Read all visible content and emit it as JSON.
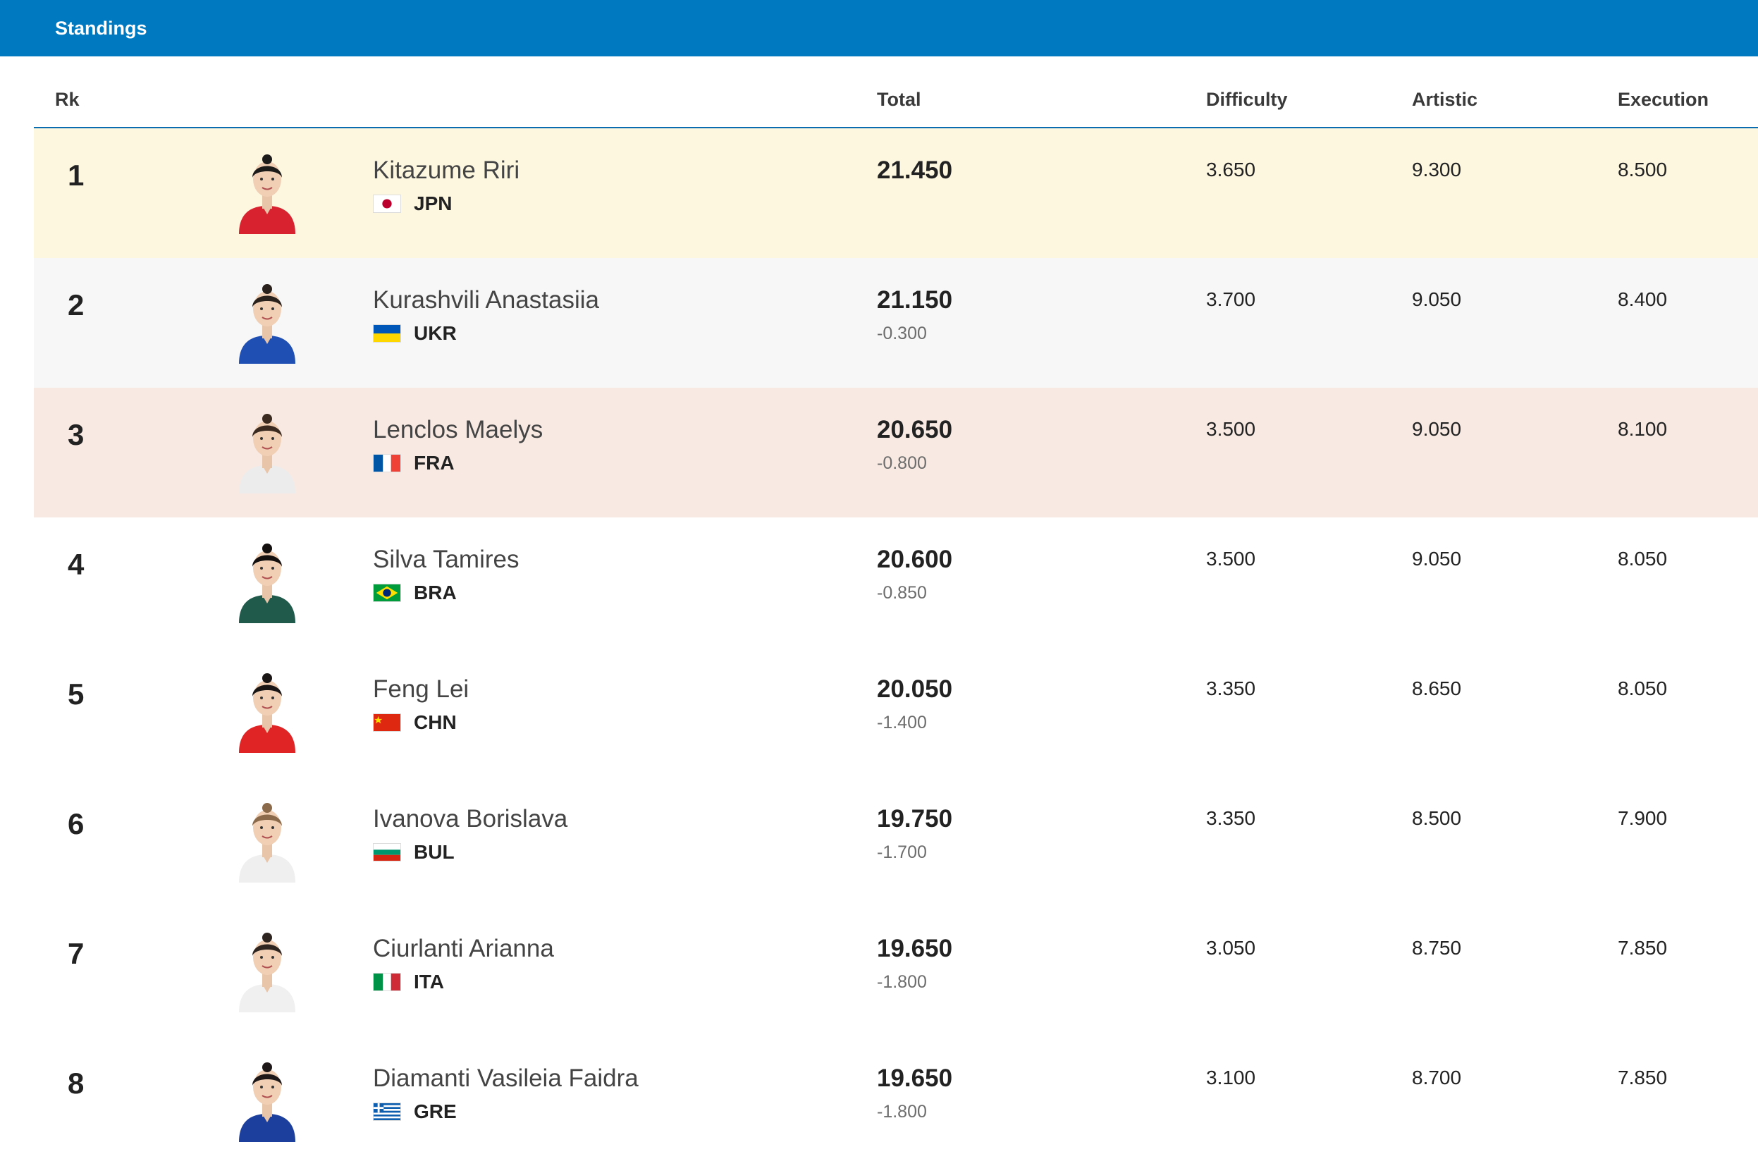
{
  "header": {
    "title": "Standings"
  },
  "columns": {
    "rank": "Rk",
    "total": "Total",
    "difficulty": "Difficulty",
    "artistic": "Artistic",
    "execution": "Execution"
  },
  "rows": [
    {
      "rank": "1",
      "name": "Kitazume Riri",
      "country": "JPN",
      "total": "21.450",
      "gap": "",
      "difficulty": "3.650",
      "artistic": "9.300",
      "execution": "8.500",
      "row_bg": "#fdf7e0",
      "kit_color": "#d8222f",
      "hair_color": "#1d1a1a"
    },
    {
      "rank": "2",
      "name": "Kurashvili Anastasiia",
      "country": "UKR",
      "total": "21.150",
      "gap": "-0.300",
      "difficulty": "3.700",
      "artistic": "9.050",
      "execution": "8.400",
      "row_bg": "#f7f7f7",
      "kit_color": "#1f4fb3",
      "hair_color": "#2a211c"
    },
    {
      "rank": "3",
      "name": "Lenclos Maelys",
      "country": "FRA",
      "total": "20.650",
      "gap": "-0.800",
      "difficulty": "3.500",
      "artistic": "9.050",
      "execution": "8.100",
      "row_bg": "#f8e9e2",
      "kit_color": "#ececec",
      "hair_color": "#3a2a20"
    },
    {
      "rank": "4",
      "name": "Silva Tamires",
      "country": "BRA",
      "total": "20.600",
      "gap": "-0.850",
      "difficulty": "3.500",
      "artistic": "9.050",
      "execution": "8.050",
      "row_bg": "#ffffff",
      "kit_color": "#1f5a4a",
      "hair_color": "#141010"
    },
    {
      "rank": "5",
      "name": "Feng Lei",
      "country": "CHN",
      "total": "20.050",
      "gap": "-1.400",
      "difficulty": "3.350",
      "artistic": "8.650",
      "execution": "8.050",
      "row_bg": "#ffffff",
      "kit_color": "#e02325",
      "hair_color": "#1a1616"
    },
    {
      "rank": "6",
      "name": "Ivanova Borislava",
      "country": "BUL",
      "total": "19.750",
      "gap": "-1.700",
      "difficulty": "3.350",
      "artistic": "8.500",
      "execution": "7.900",
      "row_bg": "#ffffff",
      "kit_color": "#efefef",
      "hair_color": "#8a6a4a"
    },
    {
      "rank": "7",
      "name": "Ciurlanti Arianna",
      "country": "ITA",
      "total": "19.650",
      "gap": "-1.800",
      "difficulty": "3.050",
      "artistic": "8.750",
      "execution": "7.850",
      "row_bg": "#ffffff",
      "kit_color": "#f0f0f0",
      "hair_color": "#2e2420"
    },
    {
      "rank": "8",
      "name": "Diamanti Vasileia Faidra",
      "country": "GRE",
      "total": "19.650",
      "gap": "-1.800",
      "difficulty": "3.100",
      "artistic": "8.700",
      "execution": "7.850",
      "row_bg": "#ffffff",
      "kit_color": "#1c3f9e",
      "hair_color": "#1e1818"
    }
  ]
}
